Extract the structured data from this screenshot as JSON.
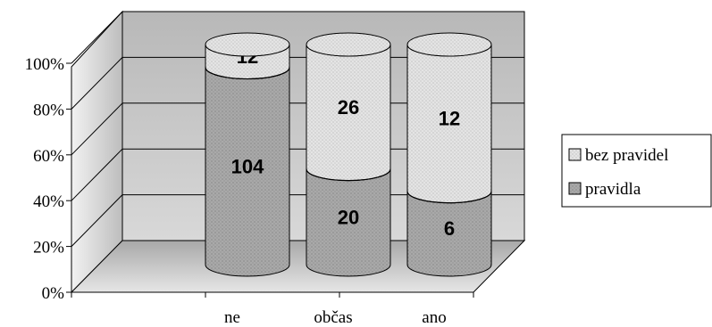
{
  "chart_data": {
    "type": "bar",
    "stacked": "percent",
    "shape": "3d-cylinder",
    "categories": [
      "ne",
      "občas",
      "ano"
    ],
    "series": [
      {
        "name": "pravidla",
        "values": [
          104,
          20,
          6
        ],
        "labels": [
          "104",
          "20",
          "6"
        ],
        "color": "#a9a9a9"
      },
      {
        "name": "bez pravidel",
        "values": [
          12,
          26,
          12
        ],
        "labels": [
          "12",
          "26",
          "12"
        ],
        "color": "#e4e4e4"
      }
    ],
    "y_ticks": [
      "0%",
      "20%",
      "40%",
      "60%",
      "80%",
      "100%"
    ],
    "ylim": [
      0,
      100
    ],
    "grid": true,
    "legend_position": "right",
    "wall_color": "#c8c8c8",
    "floor_color": "#b4b4b4"
  }
}
